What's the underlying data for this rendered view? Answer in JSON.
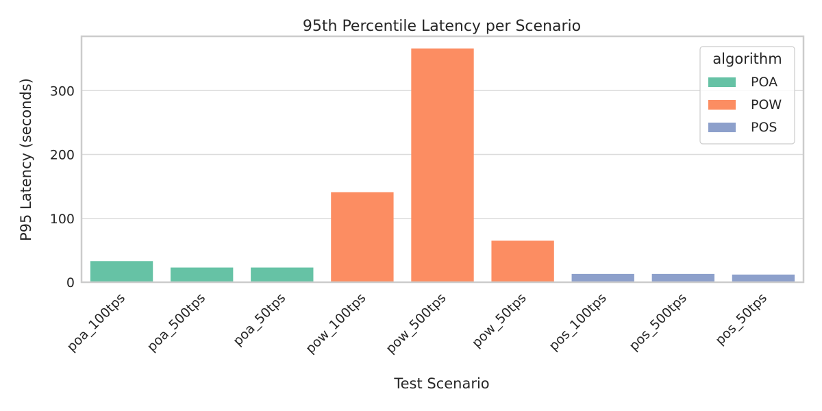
{
  "chart_data": {
    "type": "bar",
    "title": "95th Percentile Latency per Scenario",
    "xlabel": "Test Scenario",
    "ylabel": "P95 Latency (seconds)",
    "categories": [
      "poa_100tps",
      "poa_500tps",
      "poa_50tps",
      "pow_100tps",
      "pow_500tps",
      "pow_50tps",
      "pos_100tps",
      "pos_500tps",
      "pos_50tps"
    ],
    "values": [
      33,
      23,
      23,
      141,
      366,
      65,
      13,
      13,
      12
    ],
    "groups": [
      "POA",
      "POA",
      "POA",
      "POW",
      "POW",
      "POW",
      "POS",
      "POS",
      "POS"
    ],
    "ylim": [
      0,
      385
    ],
    "yticks": [
      0,
      100,
      200,
      300
    ],
    "grid": true,
    "legend": {
      "title": "algorithm",
      "placement": "top-right",
      "entries": [
        {
          "name": "POA",
          "color": "#66c2a5"
        },
        {
          "name": "POW",
          "color": "#fc8d62"
        },
        {
          "name": "POS",
          "color": "#8da0cb"
        }
      ]
    }
  }
}
